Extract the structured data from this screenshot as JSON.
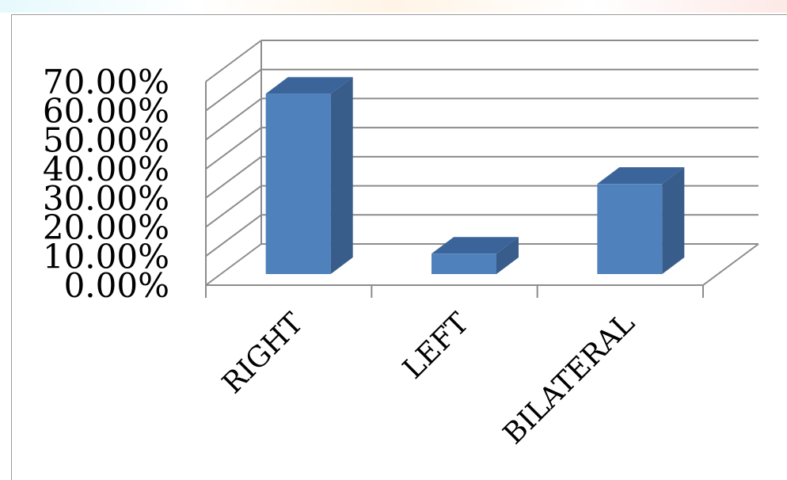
{
  "chart_data": {
    "type": "bar",
    "style": "3d-column",
    "categories": [
      "RIGHT",
      "LEFT",
      "BILATERAL"
    ],
    "values": [
      0.62,
      0.07,
      0.31
    ],
    "yticks": [
      "0.00%",
      "10.00%",
      "20.00%",
      "30.00%",
      "40.00%",
      "50.00%",
      "60.00%",
      "70.00%"
    ],
    "ylim": [
      0,
      0.7
    ],
    "grid": true,
    "legend": "none",
    "colors": {
      "front": "#4f81bd",
      "side": "#385d8a",
      "top": "#3b649a",
      "grid": "#8c8c8c"
    }
  }
}
